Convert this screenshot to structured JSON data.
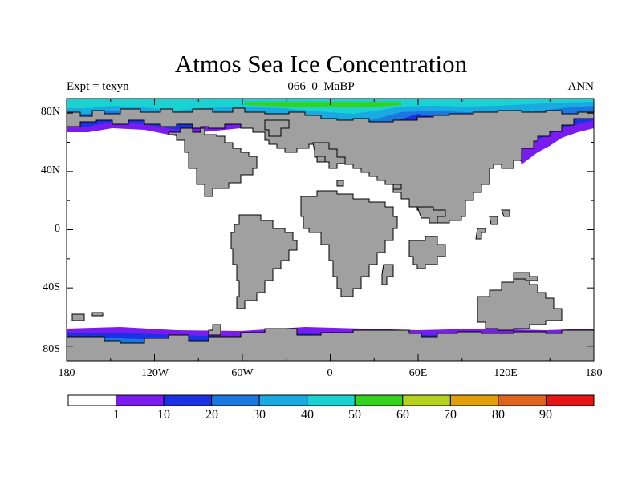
{
  "title": "Atmos Sea Ice Concentration",
  "subtitle_left": "Expt = texyn",
  "subtitle_center": "066_0_MaBP",
  "subtitle_right": "ANN",
  "y_ticks": [
    "80N",
    "40N",
    "0",
    "40S",
    "80S"
  ],
  "x_ticks": [
    "180",
    "120W",
    "60W",
    "0",
    "60E",
    "120E",
    "180"
  ],
  "colorbar": {
    "labels": [
      "1",
      "10",
      "20",
      "30",
      "40",
      "50",
      "60",
      "70",
      "80",
      "90"
    ],
    "colors": [
      "#ffffff",
      "#7a1cf0",
      "#1a32e6",
      "#1a78e0",
      "#18aae0",
      "#1ad2d2",
      "#32d21e",
      "#b4d21e",
      "#e0a00a",
      "#e0641e",
      "#e61414"
    ]
  },
  "colors": {
    "land": "#a0a0a0",
    "ocean": "#ffffff",
    "coast": "#000000"
  }
}
